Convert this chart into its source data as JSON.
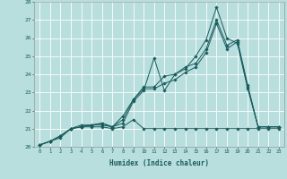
{
  "xlabel": "Humidex (Indice chaleur)",
  "ylabel": "",
  "xlim": [
    -0.5,
    23.5
  ],
  "ylim": [
    20,
    28
  ],
  "xticks": [
    0,
    1,
    2,
    3,
    4,
    5,
    6,
    7,
    8,
    9,
    10,
    11,
    12,
    13,
    14,
    15,
    16,
    17,
    18,
    19,
    20,
    21,
    22,
    23
  ],
  "yticks": [
    20,
    21,
    22,
    23,
    24,
    25,
    26,
    27,
    28
  ],
  "bg_color": "#b8dede",
  "line_color": "#1a5c5c",
  "grid_color": "#ffffff",
  "lines": [
    [
      20.1,
      20.3,
      20.5,
      21.0,
      21.1,
      21.1,
      21.1,
      21.0,
      21.1,
      21.5,
      21.0,
      21.0,
      21.0,
      21.0,
      21.0,
      21.0,
      21.0,
      21.0,
      21.0,
      21.0,
      21.0,
      21.0,
      21.0,
      21.0
    ],
    [
      20.1,
      20.3,
      20.6,
      21.0,
      21.1,
      21.2,
      21.2,
      21.1,
      21.3,
      22.5,
      23.1,
      24.9,
      23.1,
      24.0,
      24.3,
      25.0,
      25.9,
      27.7,
      26.0,
      25.7,
      23.2,
      21.1,
      21.1,
      21.1
    ],
    [
      20.1,
      20.3,
      20.6,
      21.0,
      21.1,
      21.2,
      21.3,
      21.1,
      21.5,
      22.6,
      23.2,
      23.2,
      23.5,
      23.7,
      24.1,
      24.4,
      25.2,
      26.8,
      25.4,
      25.8,
      23.3,
      21.1,
      21.1,
      21.1
    ],
    [
      20.1,
      20.3,
      20.6,
      21.0,
      21.2,
      21.2,
      21.3,
      21.1,
      21.7,
      22.6,
      23.3,
      23.3,
      23.9,
      24.0,
      24.4,
      24.6,
      25.4,
      27.0,
      25.6,
      25.9,
      23.4,
      21.1,
      21.1,
      21.1
    ]
  ]
}
